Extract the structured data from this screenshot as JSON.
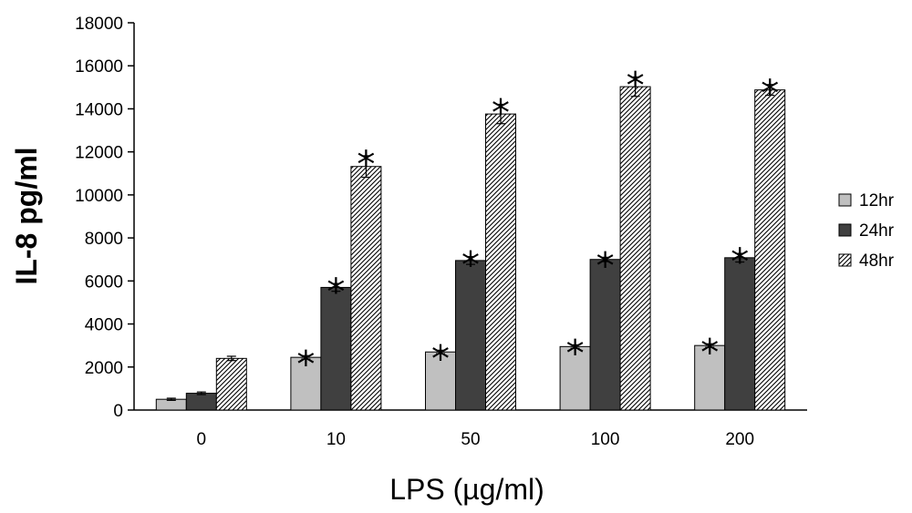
{
  "chart_data": {
    "type": "bar",
    "title": "",
    "xlabel": "LPS (µg/ml)",
    "ylabel": "IL-8 pg/ml",
    "categories": [
      "0",
      "10",
      "50",
      "100",
      "200"
    ],
    "ylim": [
      0,
      18000
    ],
    "yticks": [
      "0",
      "2000",
      "4000",
      "6000",
      "8000",
      "10000",
      "12000",
      "14000",
      "16000",
      "18000"
    ],
    "legend_position": "right",
    "grid": false,
    "significance_marker": "*",
    "series": [
      {
        "name": "12hr",
        "fill": "#c0c0c0",
        "values": [
          500,
          2450,
          2700,
          2950,
          3000
        ],
        "errors": [
          50,
          80,
          80,
          80,
          80
        ],
        "significant": [
          false,
          true,
          true,
          true,
          true
        ]
      },
      {
        "name": "24hr",
        "fill": "#404040",
        "values": [
          780,
          5700,
          6950,
          7000,
          7080
        ],
        "errors": [
          60,
          180,
          180,
          100,
          200
        ],
        "significant": [
          false,
          true,
          true,
          true,
          true
        ]
      },
      {
        "name": "48hr",
        "fill": "hatched",
        "values": [
          2400,
          11320,
          13760,
          15030,
          14880
        ],
        "errors": [
          100,
          500,
          450,
          450,
          250
        ],
        "significant": [
          false,
          true,
          true,
          true,
          true
        ]
      }
    ]
  }
}
